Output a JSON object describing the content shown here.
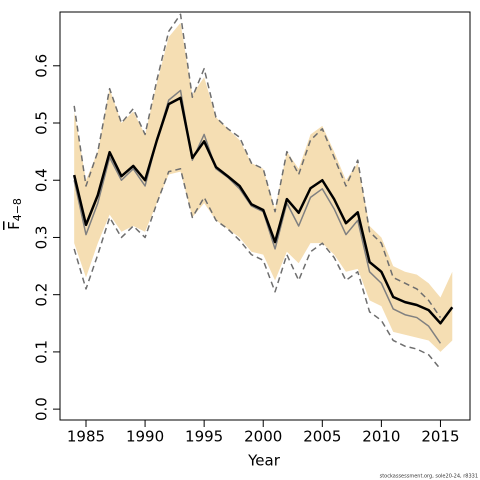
{
  "chart_data": {
    "type": "line",
    "xlabel": "Year",
    "ylabel": "F",
    "ylabel_sub": "4−8",
    "footnote": "stockassessment.org, sole20-24, r8331",
    "x": [
      1984,
      1985,
      1986,
      1987,
      1988,
      1989,
      1990,
      1991,
      1992,
      1993,
      1994,
      1995,
      1996,
      1997,
      1998,
      1999,
      2000,
      2001,
      2002,
      2003,
      2004,
      2005,
      2006,
      2007,
      2008,
      2009,
      2010,
      2011,
      2012,
      2013,
      2014,
      2015,
      2016
    ],
    "xlim": [
      1982.8,
      2017.5
    ],
    "xticks": [
      1985,
      1990,
      1995,
      2000,
      2005,
      2010,
      2015
    ],
    "ylim": [
      -0.019,
      0.694
    ],
    "yticks": [
      {
        "value": 0,
        "label": "0.0"
      },
      0.1,
      0.2,
      0.3,
      0.4,
      0.5,
      0.6
    ],
    "band": {
      "color": "#f5deb3",
      "upper": [
        0.52,
        0.4,
        0.45,
        0.56,
        0.5,
        0.52,
        0.48,
        0.57,
        0.65,
        0.675,
        0.55,
        0.58,
        0.51,
        0.49,
        0.47,
        0.43,
        0.42,
        0.35,
        0.45,
        0.42,
        0.48,
        0.495,
        0.45,
        0.4,
        0.43,
        0.32,
        0.3,
        0.25,
        0.24,
        0.235,
        0.22,
        0.195,
        0.24
      ],
      "lower": [
        0.29,
        0.23,
        0.29,
        0.34,
        0.31,
        0.32,
        0.31,
        0.36,
        0.41,
        0.415,
        0.335,
        0.36,
        0.33,
        0.315,
        0.3,
        0.275,
        0.27,
        0.225,
        0.275,
        0.255,
        0.29,
        0.29,
        0.27,
        0.24,
        0.245,
        0.19,
        0.18,
        0.135,
        0.13,
        0.125,
        0.12,
        0.1,
        0.12
      ]
    },
    "series": [
      {
        "color": "#6e6e6e",
        "dash": true,
        "width": 1.5,
        "values": [
          0.53,
          0.39,
          0.45,
          0.56,
          0.5,
          0.525,
          0.48,
          0.575,
          0.66,
          0.69,
          0.545,
          0.595,
          0.51,
          0.49,
          0.475,
          0.43,
          0.42,
          0.345,
          0.45,
          0.41,
          0.47,
          0.49,
          0.44,
          0.39,
          0.435,
          0.31,
          0.29,
          0.23,
          0.22,
          0.21,
          0.19,
          0.16,
          null
        ]
      },
      {
        "color": "#6e6e6e",
        "dash": true,
        "width": 1.5,
        "values": [
          0.28,
          0.21,
          0.27,
          0.335,
          0.3,
          0.32,
          0.3,
          0.36,
          0.415,
          0.42,
          0.335,
          0.37,
          0.33,
          0.315,
          0.295,
          0.27,
          0.26,
          0.205,
          0.27,
          0.225,
          0.275,
          0.29,
          0.265,
          0.225,
          0.24,
          0.17,
          0.155,
          0.12,
          0.11,
          0.105,
          0.095,
          0.07,
          null
        ]
      },
      {
        "color": "#808080",
        "dash": false,
        "width": 1.5,
        "values": [
          0.4,
          0.305,
          0.36,
          0.44,
          0.4,
          0.42,
          0.39,
          0.47,
          0.54,
          0.557,
          0.435,
          0.48,
          0.42,
          0.405,
          0.385,
          0.355,
          0.345,
          0.28,
          0.36,
          0.32,
          0.37,
          0.385,
          0.35,
          0.305,
          0.33,
          0.24,
          0.22,
          0.175,
          0.165,
          0.16,
          0.145,
          0.115,
          null
        ]
      },
      {
        "color": "#000000",
        "dash": false,
        "width": 2.5,
        "values": [
          0.409,
          0.322,
          0.374,
          0.449,
          0.407,
          0.425,
          0.4,
          0.47,
          0.533,
          0.544,
          0.439,
          0.468,
          0.423,
          0.407,
          0.39,
          0.358,
          0.348,
          0.292,
          0.367,
          0.343,
          0.386,
          0.4,
          0.367,
          0.325,
          0.344,
          0.257,
          0.24,
          0.196,
          0.187,
          0.182,
          0.173,
          0.15,
          0.178
        ]
      }
    ]
  }
}
